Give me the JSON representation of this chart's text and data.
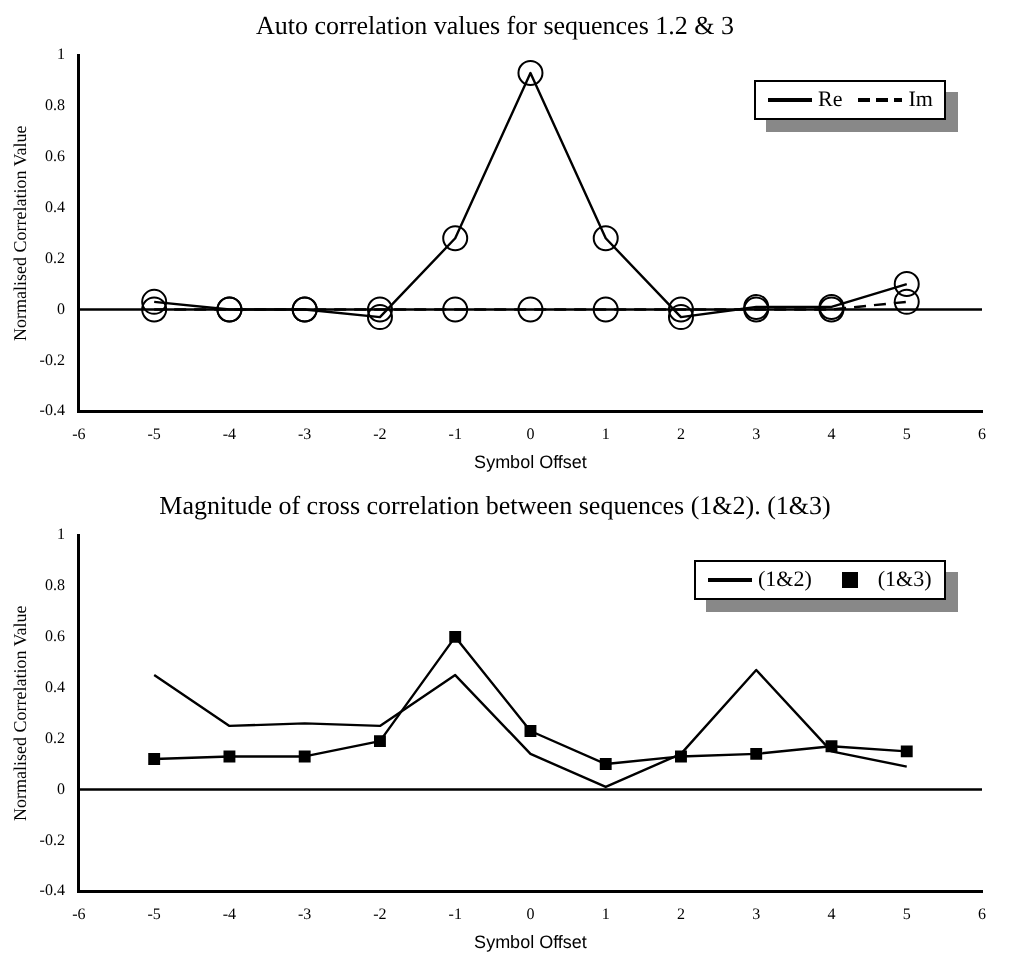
{
  "chart_data": [
    {
      "type": "line",
      "title": "Auto correlation values for sequences 1.2 & 3",
      "xlabel": "Symbol Offset",
      "ylabel": "Normalised Correlation Value",
      "x": [
        -5,
        -4,
        -3,
        -2,
        -1,
        0,
        1,
        2,
        3,
        4,
        5
      ],
      "series": [
        {
          "name": "Re",
          "color": "#000000",
          "marker": "circle",
          "line_style": "solid",
          "values": [
            0.03,
            0,
            0,
            -0.03,
            0.28,
            0.93,
            0.28,
            -0.03,
            0.01,
            0.01,
            0.1
          ]
        },
        {
          "name": "Im",
          "color": "#000000",
          "marker": "circle",
          "line_style": "dashed",
          "values": [
            0,
            0,
            0,
            0,
            0,
            0,
            0,
            0,
            0,
            0,
            0.03
          ]
        }
      ],
      "xlim": [
        -6,
        6
      ],
      "xticks": [
        -6,
        -5,
        -4,
        -3,
        -2,
        -1,
        0,
        1,
        2,
        3,
        4,
        5,
        6
      ],
      "ylim": [
        -0.4,
        1
      ],
      "yticks": [
        -0.4,
        -0.2,
        0,
        0.2,
        0.4,
        0.6,
        0.8,
        1
      ],
      "ref_lines": [
        {
          "axis": "y",
          "value": 0,
          "color": "#000000"
        }
      ],
      "grid": false,
      "legend": "top right"
    },
    {
      "type": "line",
      "title": "Magnitude of cross correlation between sequences (1&2). (1&3)",
      "xlabel": "Symbol Offset",
      "ylabel": "Normalised Correlation Value",
      "x": [
        -5,
        -4,
        -3,
        -2,
        -1,
        0,
        1,
        2,
        3,
        4,
        5
      ],
      "series": [
        {
          "name": "(1&2)",
          "color": "#000000",
          "marker": "none",
          "line_style": "solid",
          "values": [
            0.45,
            0.25,
            0.26,
            0.25,
            0.45,
            0.14,
            0.01,
            0.14,
            0.47,
            0.15,
            0.09
          ]
        },
        {
          "name": "(1&3)",
          "color": "#000000",
          "marker": "square",
          "line_style": "solid",
          "values": [
            0.12,
            0.13,
            0.13,
            0.19,
            0.6,
            0.23,
            0.1,
            0.13,
            0.14,
            0.17,
            0.15
          ]
        }
      ],
      "xlim": [
        -6,
        6
      ],
      "xticks": [
        -6,
        -5,
        -4,
        -3,
        -2,
        -1,
        0,
        1,
        2,
        3,
        4,
        5,
        6
      ],
      "ylim": [
        -0.4,
        1
      ],
      "yticks": [
        -0.4,
        -0.2,
        0,
        0.2,
        0.4,
        0.6,
        0.8,
        1
      ],
      "ref_lines": [
        {
          "axis": "y",
          "value": 0,
          "color": "#000000"
        }
      ],
      "grid": false,
      "legend": "top right"
    }
  ]
}
